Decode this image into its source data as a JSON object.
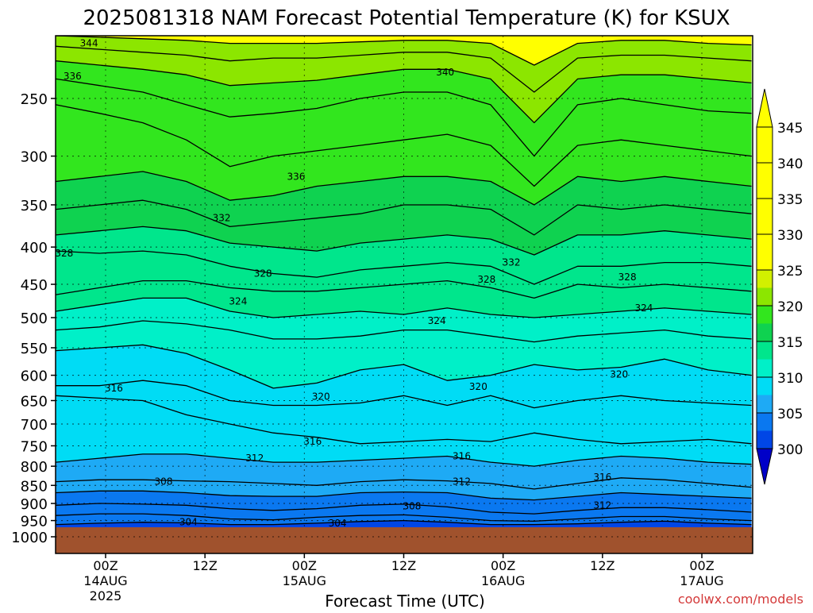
{
  "chart_data": {
    "type": "heatmap",
    "title": "2025081318 NAM Forecast Potential Temperature (K) for KSUX",
    "xlabel": "Forecast Time (UTC)",
    "ylabel": "",
    "watermark": "coolwx.com/models",
    "y_axis": {
      "scale": "pressure",
      "ylim": [
        1000,
        200
      ],
      "ticks": [
        250,
        300,
        350,
        400,
        450,
        500,
        550,
        600,
        650,
        700,
        750,
        800,
        850,
        900,
        950,
        1000
      ],
      "tick_labels": [
        "250",
        "300",
        "350",
        "400",
        "450",
        "500",
        "550",
        "600",
        "650",
        "700",
        "750",
        "800",
        "850",
        "900",
        "950",
        "1000"
      ]
    },
    "x_axis": {
      "xlim": [
        0,
        84
      ],
      "ticks": [
        {
          "hour": 6,
          "line1": "00Z",
          "line2": "14AUG",
          "line3": "2025"
        },
        {
          "hour": 18,
          "line1": "12Z",
          "line2": "",
          "line3": ""
        },
        {
          "hour": 30,
          "line1": "00Z",
          "line2": "15AUG",
          "line3": ""
        },
        {
          "hour": 42,
          "line1": "12Z",
          "line2": "",
          "line3": ""
        },
        {
          "hour": 54,
          "line1": "00Z",
          "line2": "16AUG",
          "line3": ""
        },
        {
          "hour": 66,
          "line1": "12Z",
          "line2": "",
          "line3": ""
        },
        {
          "hour": 78,
          "line1": "00Z",
          "line2": "17AUG",
          "line3": ""
        }
      ]
    },
    "grid": true,
    "colorbar": {
      "placement": "right",
      "levels": [
        300,
        305,
        310,
        315,
        320,
        325,
        330,
        335,
        340,
        345
      ],
      "labels": [
        "300",
        "305",
        "310",
        "315",
        "320",
        "325",
        "330",
        "335",
        "340",
        "345"
      ],
      "colors": [
        "#0000c8",
        "#0046e6",
        "#0a78f0",
        "#1eaaf5",
        "#00dcf5",
        "#00f0c8",
        "#00e68c",
        "#0fd250",
        "#32e61e",
        "#8ce600",
        "#d2f000",
        "#ffff00"
      ],
      "underflow_color": "#0000c8",
      "overflow_color": "#ffff00"
    },
    "ground_color": "#a0522d",
    "contour_interval": 2,
    "contours": [
      {
        "level": 304,
        "pressure": [
          962,
          958,
          955,
          957,
          962,
          962,
          958,
          953,
          950,
          955,
          962,
          962,
          960,
          955,
          952,
          958,
          962
        ]
      },
      {
        "level": 306,
        "pressure": [
          935,
          930,
          930,
          935,
          945,
          948,
          940,
          935,
          933,
          940,
          950,
          952,
          945,
          938,
          938,
          945,
          950
        ]
      },
      {
        "level": 308,
        "pressure": [
          905,
          900,
          902,
          905,
          915,
          920,
          915,
          905,
          902,
          910,
          925,
          930,
          920,
          912,
          912,
          918,
          925
        ]
      },
      {
        "level": 310,
        "pressure": [
          870,
          865,
          865,
          870,
          878,
          880,
          880,
          870,
          868,
          870,
          885,
          890,
          880,
          870,
          875,
          880,
          885
        ]
      },
      {
        "level": 312,
        "pressure": [
          840,
          835,
          835,
          838,
          840,
          845,
          850,
          840,
          835,
          838,
          845,
          860,
          845,
          830,
          835,
          845,
          855
        ]
      },
      {
        "level": 314,
        "pressure": [
          790,
          780,
          770,
          770,
          780,
          790,
          790,
          785,
          780,
          775,
          790,
          800,
          785,
          775,
          780,
          790,
          795
        ]
      },
      {
        "level": 316,
        "pressure": [
          640,
          645,
          650,
          680,
          700,
          720,
          730,
          745,
          740,
          735,
          740,
          720,
          735,
          745,
          740,
          735,
          745
        ]
      },
      {
        "level": 318,
        "pressure": [
          620,
          620,
          610,
          620,
          650,
          660,
          660,
          655,
          640,
          660,
          640,
          665,
          650,
          640,
          650,
          655,
          660
        ]
      },
      {
        "level": 320,
        "pressure": [
          555,
          550,
          545,
          560,
          590,
          625,
          615,
          590,
          580,
          610,
          600,
          580,
          590,
          585,
          570,
          590,
          600
        ]
      },
      {
        "level": 322,
        "pressure": [
          520,
          515,
          505,
          510,
          520,
          535,
          535,
          530,
          520,
          520,
          530,
          540,
          530,
          525,
          520,
          530,
          535
        ]
      },
      {
        "level": 324,
        "pressure": [
          490,
          480,
          470,
          470,
          490,
          500,
          495,
          490,
          495,
          485,
          495,
          500,
          495,
          490,
          485,
          490,
          495
        ]
      },
      {
        "level": 326,
        "pressure": [
          465,
          455,
          445,
          445,
          455,
          460,
          460,
          455,
          450,
          445,
          455,
          470,
          450,
          455,
          450,
          455,
          460
        ]
      },
      {
        "level": 328,
        "pressure": [
          405,
          408,
          405,
          410,
          425,
          435,
          440,
          430,
          425,
          420,
          425,
          450,
          425,
          425,
          420,
          420,
          425
        ]
      },
      {
        "level": 330,
        "pressure": [
          385,
          380,
          375,
          380,
          395,
          400,
          405,
          395,
          390,
          385,
          390,
          410,
          385,
          385,
          380,
          385,
          390
        ]
      },
      {
        "level": 332,
        "pressure": [
          355,
          350,
          345,
          355,
          375,
          370,
          365,
          360,
          350,
          350,
          355,
          385,
          350,
          355,
          350,
          355,
          360
        ]
      },
      {
        "level": 334,
        "pressure": [
          325,
          320,
          315,
          325,
          345,
          340,
          330,
          325,
          320,
          320,
          325,
          350,
          320,
          325,
          320,
          325,
          330
        ]
      },
      {
        "level": 336,
        "pressure": [
          255,
          262,
          270,
          285,
          310,
          300,
          295,
          290,
          285,
          280,
          290,
          330,
          290,
          285,
          290,
          295,
          300
        ]
      },
      {
        "level": 338,
        "pressure": [
          235,
          240,
          245,
          255,
          265,
          262,
          258,
          250,
          245,
          245,
          255,
          300,
          255,
          250,
          255,
          260,
          262
        ]
      },
      {
        "level": 340,
        "pressure": [
          222,
          225,
          228,
          232,
          240,
          238,
          236,
          232,
          228,
          228,
          235,
          270,
          235,
          232,
          232,
          235,
          238
        ]
      },
      {
        "level": 342,
        "pressure": [
          212,
          214,
          216,
          218,
          222,
          220,
          220,
          218,
          216,
          216,
          220,
          245,
          220,
          218,
          218,
          220,
          222
        ]
      },
      {
        "level": 344,
        "pressure": [
          205,
          206,
          207,
          208,
          210,
          210,
          210,
          209,
          208,
          208,
          210,
          225,
          210,
          208,
          208,
          210,
          211
        ]
      }
    ],
    "contour_labels": [
      {
        "text": "344",
        "hour": 4,
        "pressure": 210
      },
      {
        "text": "336",
        "hour": 2,
        "pressure": 233
      },
      {
        "text": "340",
        "hour": 47,
        "pressure": 230
      },
      {
        "text": "336",
        "hour": 29,
        "pressure": 320
      },
      {
        "text": "332",
        "hour": 20,
        "pressure": 365
      },
      {
        "text": "332",
        "hour": 55,
        "pressure": 420
      },
      {
        "text": "328",
        "hour": 1,
        "pressure": 408
      },
      {
        "text": "328",
        "hour": 25,
        "pressure": 435
      },
      {
        "text": "328",
        "hour": 52,
        "pressure": 443
      },
      {
        "text": "328",
        "hour": 69,
        "pressure": 440
      },
      {
        "text": "324",
        "hour": 22,
        "pressure": 475
      },
      {
        "text": "324",
        "hour": 46,
        "pressure": 505
      },
      {
        "text": "324",
        "hour": 71,
        "pressure": 485
      },
      {
        "text": "320",
        "hour": 32,
        "pressure": 642
      },
      {
        "text": "320",
        "hour": 51,
        "pressure": 622
      },
      {
        "text": "320",
        "hour": 68,
        "pressure": 598
      },
      {
        "text": "316",
        "hour": 7,
        "pressure": 625
      },
      {
        "text": "316",
        "hour": 31,
        "pressure": 740
      },
      {
        "text": "316",
        "hour": 49,
        "pressure": 775
      },
      {
        "text": "316",
        "hour": 66,
        "pressure": 828
      },
      {
        "text": "312",
        "hour": 24,
        "pressure": 780
      },
      {
        "text": "312",
        "hour": 49,
        "pressure": 840
      },
      {
        "text": "312",
        "hour": 66,
        "pressure": 905
      },
      {
        "text": "308",
        "hour": 13,
        "pressure": 840
      },
      {
        "text": "308",
        "hour": 43,
        "pressure": 908
      },
      {
        "text": "304",
        "hour": 16,
        "pressure": 955
      },
      {
        "text": "304",
        "hour": 34,
        "pressure": 958
      }
    ]
  }
}
